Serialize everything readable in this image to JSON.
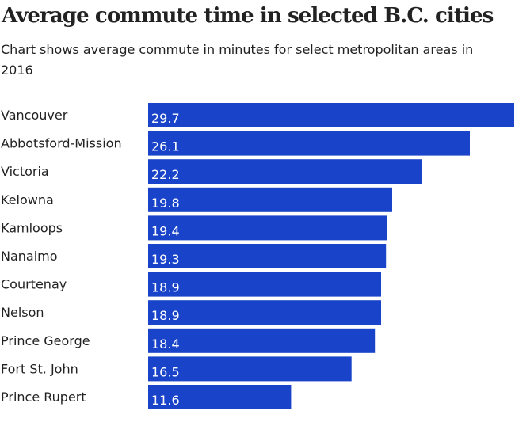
{
  "chart_data": {
    "type": "bar",
    "orientation": "horizontal",
    "title": "Average commute time in selected B.C. cities",
    "subtitle": "Chart shows average commute in minutes for select metropolitan areas in 2016",
    "categories": [
      "Vancouver",
      "Abbotsford-Mission",
      "Victoria",
      "Kelowna",
      "Kamloops",
      "Nanaimo",
      "Courtenay",
      "Nelson",
      "Prince George",
      "Fort St. John",
      "Prince Rupert"
    ],
    "values": [
      29.7,
      26.1,
      22.2,
      19.8,
      19.4,
      19.3,
      18.9,
      18.9,
      18.4,
      16.5,
      11.6
    ],
    "value_labels": [
      "29.7",
      "26.1",
      "22.2",
      "19.8",
      "19.4",
      "19.3",
      "18.9",
      "18.9",
      "18.4",
      "16.5",
      "11.6"
    ],
    "xlim": [
      0,
      29.7
    ],
    "bar_color": "#1944c9",
    "grid": false,
    "legend": "none"
  }
}
